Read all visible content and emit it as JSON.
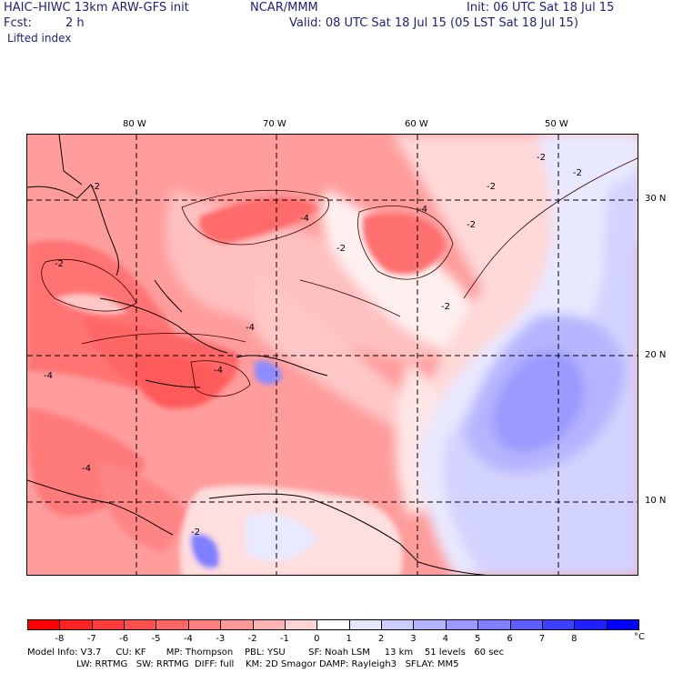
{
  "header": {
    "model": "HAIC–HIWC 13km ARW-GFS init",
    "org": "NCAR/MMM",
    "init": "Init: 06 UTC Sat 18 Jul 15",
    "fcst_label": "Fcst:",
    "fcst_value": "2 h",
    "valid": "Valid: 08 UTC Sat 18 Jul 15 (05 LST Sat 18 Jul 15)",
    "field": "Lifted index"
  },
  "map": {
    "lon_labels": [
      "80 W",
      "70 W",
      "60 W",
      "50 W"
    ],
    "lat_labels": [
      "30 N",
      "20 N",
      "10 N"
    ],
    "contour_labels": [
      "-2",
      "-2",
      "-2",
      "-2",
      "-2",
      "-2",
      "-2",
      "-2",
      "-4",
      "-4",
      "-4",
      "-4",
      "-4",
      "-4",
      "-2"
    ]
  },
  "colorbar": {
    "labels": [
      "-8",
      "-7",
      "-6",
      "-5",
      "-4",
      "-3",
      "-2",
      "-1",
      "0",
      "1",
      "2",
      "3",
      "4",
      "5",
      "6",
      "7",
      "8"
    ],
    "unit": "°C",
    "colors": [
      "#ff0000",
      "#ff2222",
      "#ff3c3c",
      "#ff5050",
      "#ff6666",
      "#ff7f7f",
      "#ff9999",
      "#ffb3b3",
      "#ffd4d4",
      "#ffffff",
      "#e6e6ff",
      "#ccccff",
      "#b3b3ff",
      "#9999ff",
      "#7f7fff",
      "#5f5fff",
      "#3f3fff",
      "#1f1fff",
      "#0000ff"
    ]
  },
  "info": {
    "line1": "Model Info: V3.7     CU: KF       MP: Thompson    PBL: YSU        SF: Noah LSM     13 km    51 levels   60 sec",
    "line2": "                 LW: RRTMG   SW: RRTMG  DIFF: full    KM: 2D Smagor DAMP: Rayleigh3   SFLAY: MM5"
  }
}
